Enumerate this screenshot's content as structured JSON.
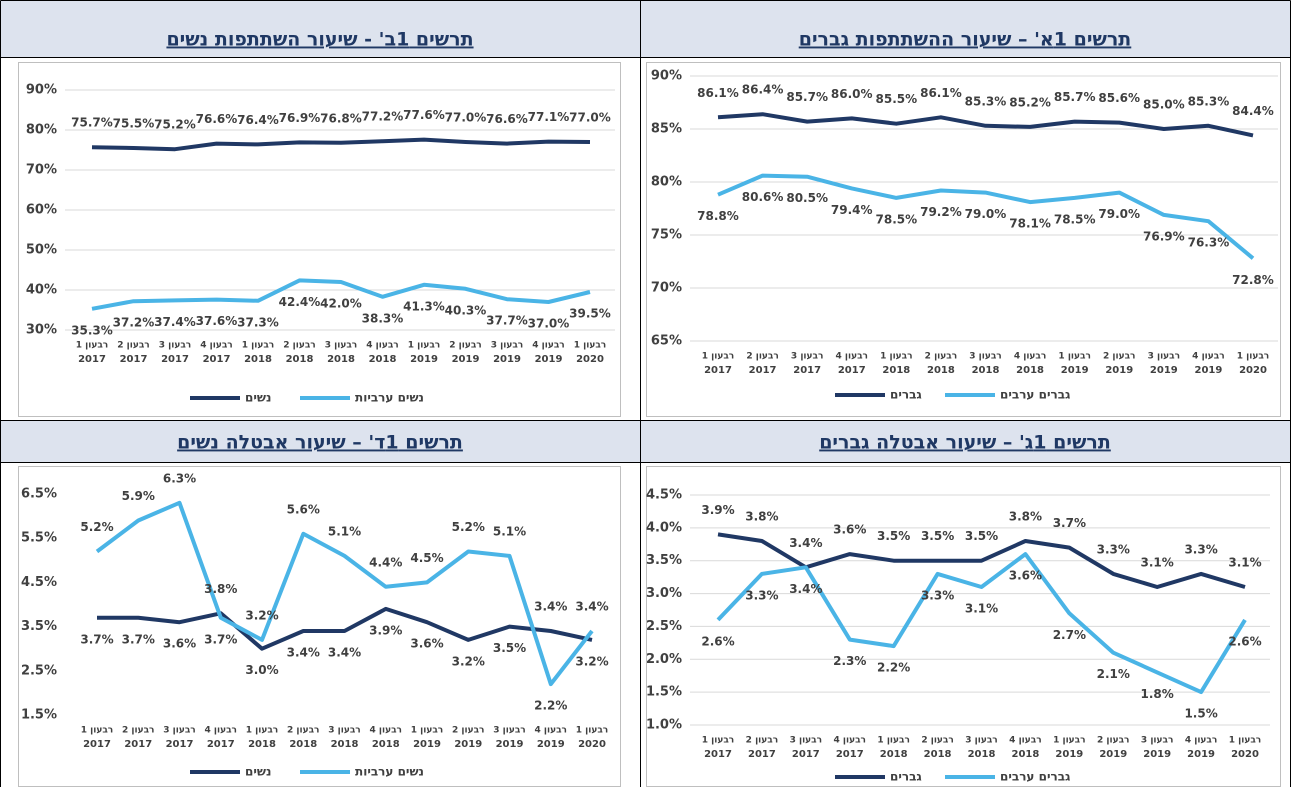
{
  "chart_data": [
    {
      "type": "line",
      "title": "תרשים 1א' – שיעור ההשתתפות גברים",
      "categories": [
        [
          "רבעון 1",
          "2017"
        ],
        [
          "רבעון 2",
          "2017"
        ],
        [
          "רבעון 3",
          "2017"
        ],
        [
          "רבעון 4",
          "2017"
        ],
        [
          "רבעון 1",
          "2018"
        ],
        [
          "רבעון 2",
          "2018"
        ],
        [
          "רבעון 3",
          "2018"
        ],
        [
          "רבעון 4",
          "2018"
        ],
        [
          "רבעון 1",
          "2019"
        ],
        [
          "רבעון 2",
          "2019"
        ],
        [
          "רבעון 3",
          "2019"
        ],
        [
          "רבעון 4",
          "2019"
        ],
        [
          "רבעון 1",
          "2020"
        ]
      ],
      "ylim": [
        65,
        90
      ],
      "yticks": [
        {
          "value": 65,
          "label": "65%"
        },
        {
          "value": 70,
          "label": "70%"
        },
        {
          "value": 75,
          "label": "75%"
        },
        {
          "value": 80,
          "label": "80%"
        },
        {
          "value": 85,
          "label": "85%"
        },
        {
          "value": 90,
          "label": "90%"
        }
      ],
      "grid": true,
      "series": [
        {
          "name": "גברים",
          "color": "#203864",
          "values": [
            86.1,
            86.4,
            85.7,
            86.0,
            85.5,
            86.1,
            85.3,
            85.2,
            85.7,
            85.6,
            85.0,
            85.3,
            84.4
          ],
          "value_labels": [
            "86.1%",
            "86.4%",
            "85.7%",
            "86.0%",
            "85.5%",
            "86.1%",
            "85.3%",
            "85.2%",
            "85.7%",
            "85.6%",
            "85.0%",
            "85.3%",
            "84.4%"
          ]
        },
        {
          "name": "גברים ערבים",
          "color": "#4ab4e6",
          "values": [
            78.8,
            80.6,
            80.5,
            79.4,
            78.5,
            79.2,
            79.0,
            78.1,
            78.5,
            79.0,
            76.9,
            76.3,
            72.8
          ],
          "value_labels": [
            "78.8%",
            "80.6%",
            "80.5%",
            "79.4%",
            "78.5%",
            "79.2%",
            "79.0%",
            "78.1%",
            "78.5%",
            "79.0%",
            "76.9%",
            "76.3%",
            "72.8%"
          ]
        }
      ]
    },
    {
      "type": "line",
      "title": "תרשים 1ב' - שיעור השתתפות נשים",
      "categories": [
        [
          "רבעון 1",
          "2017"
        ],
        [
          "רבעון 2",
          "2017"
        ],
        [
          "רבעון 3",
          "2017"
        ],
        [
          "רבעון 4",
          "2017"
        ],
        [
          "רבעון 1",
          "2018"
        ],
        [
          "רבעון 2",
          "2018"
        ],
        [
          "רבעון 3",
          "2018"
        ],
        [
          "רבעון 4",
          "2018"
        ],
        [
          "רבעון 1",
          "2019"
        ],
        [
          "רבעון 2",
          "2019"
        ],
        [
          "רבעון 3",
          "2019"
        ],
        [
          "רבעון 4",
          "2019"
        ],
        [
          "רבעון 1",
          "2020"
        ]
      ],
      "ylim": [
        30,
        90
      ],
      "yticks": [
        {
          "value": 30,
          "label": "30%"
        },
        {
          "value": 40,
          "label": "40%"
        },
        {
          "value": 50,
          "label": "50%"
        },
        {
          "value": 60,
          "label": "60%"
        },
        {
          "value": 70,
          "label": "70%"
        },
        {
          "value": 80,
          "label": "80%"
        },
        {
          "value": 90,
          "label": "90%"
        }
      ],
      "grid": true,
      "series": [
        {
          "name": "נשים",
          "color": "#203864",
          "values": [
            75.7,
            75.5,
            75.2,
            76.6,
            76.4,
            76.9,
            76.8,
            77.2,
            77.6,
            77.0,
            76.6,
            77.1,
            77.0
          ],
          "value_labels": [
            "75.7%",
            "75.5%",
            "75.2%",
            "76.6%",
            "76.4%",
            "76.9%",
            "76.8%",
            "77.2%",
            "77.6%",
            "77.0%",
            "76.6%",
            "77.1%",
            "77.0%"
          ]
        },
        {
          "name": "נשים ערביות",
          "color": "#4ab4e6",
          "values": [
            35.3,
            37.2,
            37.4,
            37.6,
            37.3,
            42.4,
            42.0,
            38.3,
            41.3,
            40.3,
            37.7,
            37.0,
            39.5
          ],
          "value_labels": [
            "35.3%",
            "37.2%",
            "37.4%",
            "37.6%",
            "37.3%",
            "42.4%",
            "42.0%",
            "38.3%",
            "41.3%",
            "40.3%",
            "37.7%",
            "37.0%",
            "39.5%"
          ]
        }
      ]
    },
    {
      "type": "line",
      "title": "תרשים 1ג' – שיעור אבטלה גברים",
      "categories": [
        [
          "רבעון 1",
          "2017"
        ],
        [
          "רבעון 2",
          "2017"
        ],
        [
          "רבעון 3",
          "2017"
        ],
        [
          "רבעון 4",
          "2017"
        ],
        [
          "רבעון 1",
          "2018"
        ],
        [
          "רבעון 2",
          "2018"
        ],
        [
          "רבעון 3",
          "2018"
        ],
        [
          "רבעון 4",
          "2018"
        ],
        [
          "רבעון 1",
          "2019"
        ],
        [
          "רבעון 2",
          "2019"
        ],
        [
          "רבעון 3",
          "2019"
        ],
        [
          "רבעון 4",
          "2019"
        ],
        [
          "רבעון 1",
          "2020"
        ]
      ],
      "ylim": [
        1.0,
        4.5
      ],
      "yticks": [
        {
          "value": 1.0,
          "label": "1.0%"
        },
        {
          "value": 1.5,
          "label": "1.5%"
        },
        {
          "value": 2.0,
          "label": "2.0%"
        },
        {
          "value": 2.5,
          "label": "2.5%"
        },
        {
          "value": 3.0,
          "label": "3.0%"
        },
        {
          "value": 3.5,
          "label": "3.5%"
        },
        {
          "value": 4.0,
          "label": "4.0%"
        },
        {
          "value": 4.5,
          "label": "4.5%"
        }
      ],
      "grid": true,
      "series": [
        {
          "name": "גברים",
          "color": "#203864",
          "values": [
            3.9,
            3.8,
            3.4,
            3.6,
            3.5,
            3.5,
            3.5,
            3.8,
            3.7,
            3.3,
            3.1,
            3.3,
            3.1
          ],
          "value_labels": [
            "3.9%",
            "3.8%",
            "3.4%",
            "3.6%",
            "3.5%",
            "3.5%",
            "3.5%",
            "3.8%",
            "3.7%",
            "3.3%",
            "3.1%",
            "3.3%",
            "3.1%"
          ]
        },
        {
          "name": "גברים ערבים",
          "color": "#4ab4e6",
          "values": [
            2.6,
            3.3,
            3.4,
            2.3,
            2.2,
            3.3,
            3.1,
            3.6,
            2.7,
            2.1,
            1.8,
            1.5,
            2.6
          ],
          "value_labels": [
            "2.6%",
            "3.3%",
            "3.4%",
            "2.3%",
            "2.2%",
            "3.3%",
            "3.1%",
            "3.6%",
            "2.7%",
            "2.1%",
            "1.8%",
            "1.5%",
            "2.6%"
          ]
        }
      ]
    },
    {
      "type": "line",
      "title": "תרשים 1ד' – שיעור אבטלה נשים",
      "categories": [
        [
          "רבעון 1",
          "2017"
        ],
        [
          "רבעון 2",
          "2017"
        ],
        [
          "רבעון 3",
          "2017"
        ],
        [
          "רבעון 4",
          "2017"
        ],
        [
          "רבעון 1",
          "2018"
        ],
        [
          "רבעון 2",
          "2018"
        ],
        [
          "רבעון 3",
          "2018"
        ],
        [
          "רבעון 4",
          "2018"
        ],
        [
          "רבעון 1",
          "2019"
        ],
        [
          "רבעון 2",
          "2019"
        ],
        [
          "רבעון 3",
          "2019"
        ],
        [
          "רבעון 4",
          "2019"
        ],
        [
          "רבעון 1",
          "2020"
        ]
      ],
      "ylim": [
        1.5,
        6.5
      ],
      "yticks": [
        {
          "value": 1.5,
          "label": "1.5%"
        },
        {
          "value": 2.5,
          "label": "2.5%"
        },
        {
          "value": 3.5,
          "label": "3.5%"
        },
        {
          "value": 4.5,
          "label": "4.5%"
        },
        {
          "value": 5.5,
          "label": "5.5%"
        },
        {
          "value": 6.5,
          "label": "6.5%"
        }
      ],
      "grid": false,
      "series": [
        {
          "name": "נשים",
          "color": "#203864",
          "values": [
            3.7,
            3.7,
            3.6,
            3.8,
            3.0,
            3.4,
            3.4,
            3.9,
            3.6,
            3.2,
            3.5,
            3.4,
            3.2
          ],
          "value_labels": [
            "3.7%",
            "3.7%",
            "3.6%",
            "3.8%",
            "3.0%",
            "3.4%",
            "3.4%",
            "3.9%",
            "3.6%",
            "3.2%",
            "3.5%",
            "3.4%",
            "3.2%"
          ]
        },
        {
          "name": "נשים ערביות",
          "color": "#4ab4e6",
          "values": [
            5.2,
            5.9,
            6.3,
            3.7,
            3.2,
            5.6,
            5.1,
            4.4,
            4.5,
            5.2,
            5.1,
            2.2,
            3.4
          ],
          "value_labels": [
            "5.2%",
            "5.9%",
            "6.3%",
            "3.7%",
            "3.2%",
            "5.6%",
            "5.1%",
            "4.4%",
            "4.5%",
            "5.2%",
            "5.1%",
            "2.2%",
            "3.4%"
          ]
        }
      ]
    }
  ]
}
